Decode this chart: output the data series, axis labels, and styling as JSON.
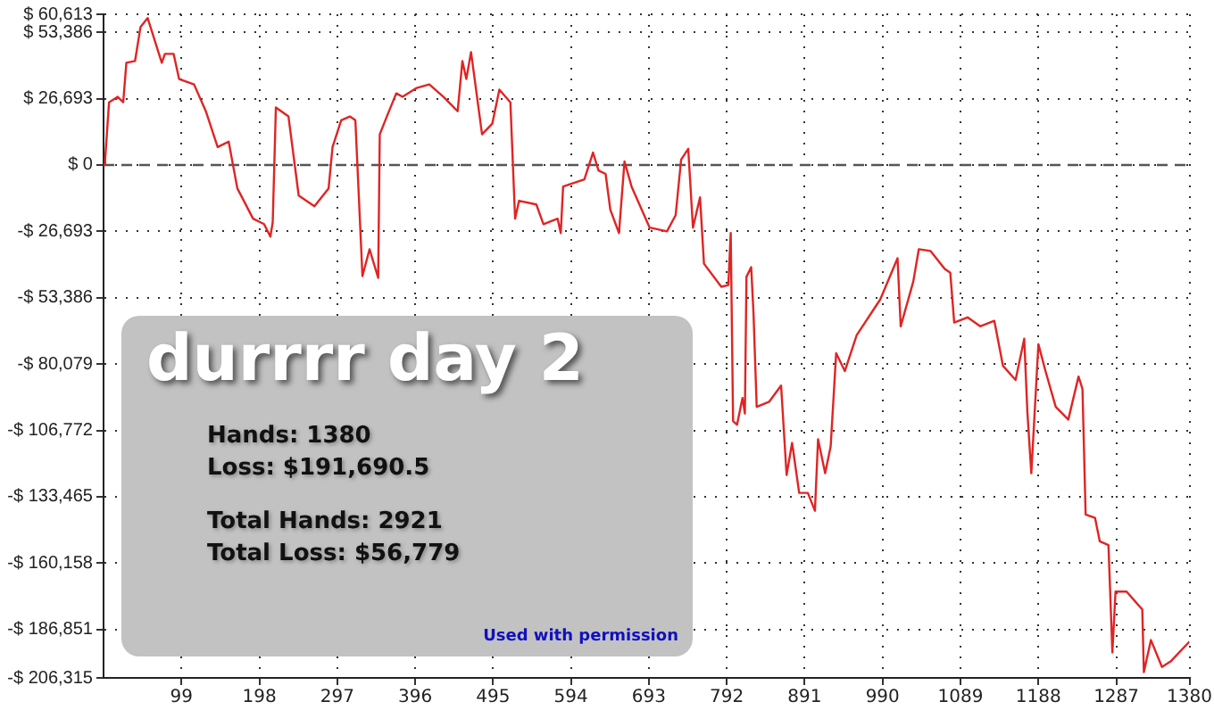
{
  "chart_data": {
    "type": "line",
    "title": "durrrr day 2",
    "annotations": [
      "Hands: 1380",
      "Loss: $191,690.5",
      "Total Hands: 2921",
      "Total Loss: $56,779",
      "Used with permission"
    ],
    "x": [
      0,
      2,
      7,
      18,
      25,
      29,
      40,
      47,
      56,
      74,
      78,
      89,
      96,
      115,
      130,
      145,
      159,
      170,
      190,
      204,
      212,
      215,
      219,
      235,
      248,
      268,
      286,
      291,
      302,
      313,
      320,
      329,
      338,
      349,
      351,
      360,
      372,
      380,
      398,
      414,
      432,
      450,
      456,
      461,
      467,
      481,
      494,
      503,
      517,
      523,
      528,
      550,
      559,
      577,
      581,
      584,
      611,
      622,
      629,
      638,
      644,
      655,
      662,
      671,
      694,
      716,
      727,
      734,
      743,
      749,
      758,
      763,
      785,
      794,
      797,
      800,
      805,
      812,
      815,
      817,
      823,
      826,
      830,
      846,
      861,
      868,
      875,
      884,
      895,
      904,
      908,
      917,
      924,
      931,
      942,
      957,
      987,
      1009,
      1013,
      1029,
      1036,
      1051,
      1069,
      1076,
      1081,
      1098,
      1114,
      1132,
      1143,
      1159,
      1170,
      1174,
      1179,
      1188,
      1197,
      1210,
      1226,
      1239,
      1244,
      1248,
      1260,
      1266,
      1277,
      1282,
      1286,
      1300,
      1320,
      1322,
      1331,
      1345,
      1356,
      1380
    ],
    "series": [
      {
        "color": "#e02424",
        "values": [
          0,
          2000,
          25200,
          27400,
          25200,
          41100,
          41800,
          55500,
          59100,
          41100,
          44700,
          44700,
          34600,
          32400,
          21600,
          7200,
          9400,
          -9400,
          -21600,
          -23800,
          -28800,
          -23000,
          23100,
          19500,
          -12300,
          -16600,
          -9400,
          7200,
          18000,
          19500,
          18000,
          -44700,
          -33900,
          -45400,
          12300,
          19500,
          28800,
          27400,
          31000,
          32400,
          27400,
          21600,
          41800,
          34600,
          45400,
          12300,
          16600,
          30300,
          25200,
          -21600,
          -14400,
          -15900,
          -23800,
          -21600,
          -27400,
          -8700,
          -5800,
          5000,
          -2200,
          -3600,
          -18000,
          -27400,
          1400,
          -8700,
          -25200,
          -26700,
          -20200,
          2200,
          6500,
          -25200,
          -13000,
          -39700,
          -49000,
          -48300,
          -27400,
          -103000,
          -104500,
          -93700,
          -100000,
          -45000,
          -41100,
          -60000,
          -97300,
          -95200,
          -88700,
          -124700,
          -111800,
          -131900,
          -131900,
          -139100,
          -110300,
          -124000,
          -113200,
          -75700,
          -82900,
          -68500,
          -54100,
          -37500,
          -64900,
          -46900,
          -33900,
          -34600,
          -41800,
          -43300,
          -63400,
          -61300,
          -64900,
          -62700,
          -80800,
          -86500,
          -69900,
          -99500,
          -124000,
          -72100,
          -82900,
          -97300,
          -102400,
          -85100,
          -90100,
          -140600,
          -142000,
          -151400,
          -152900,
          -196100,
          -171600,
          -171600,
          -178800,
          -204000,
          -191100,
          -201900,
          -199700,
          -191700
        ]
      }
    ],
    "xlim": [
      0,
      1380
    ],
    "xticks": [
      99,
      198,
      297,
      396,
      495,
      594,
      693,
      792,
      891,
      990,
      1089,
      1188,
      1287,
      1380
    ],
    "ylim": [
      -206315,
      60613
    ],
    "yticks": [
      {
        "value": 60613,
        "label": "$ 60,613"
      },
      {
        "value": 53386,
        "label": "$ 53,386"
      },
      {
        "value": 26693,
        "label": "$ 26,693"
      },
      {
        "value": 0,
        "label": "$ 0"
      },
      {
        "value": -26693,
        "label": "-$ 26,693"
      },
      {
        "value": -53386,
        "label": "-$ 53,386"
      },
      {
        "value": -80079,
        "label": "-$ 80,079"
      },
      {
        "value": -106772,
        "label": "-$ 106,772"
      },
      {
        "value": -133465,
        "label": "-$ 133,465"
      },
      {
        "value": -160158,
        "label": "-$ 160,158"
      },
      {
        "value": -186851,
        "label": "-$ 186,851"
      },
      {
        "value": -206315,
        "label": "-$ 206,315"
      }
    ],
    "grid": true,
    "legend": false,
    "marker": "none",
    "line_style": "solid",
    "ref_lines": [
      {
        "axis": "y",
        "value": 0,
        "label": null,
        "color": "#555555",
        "line_style": "dashed"
      }
    ]
  }
}
